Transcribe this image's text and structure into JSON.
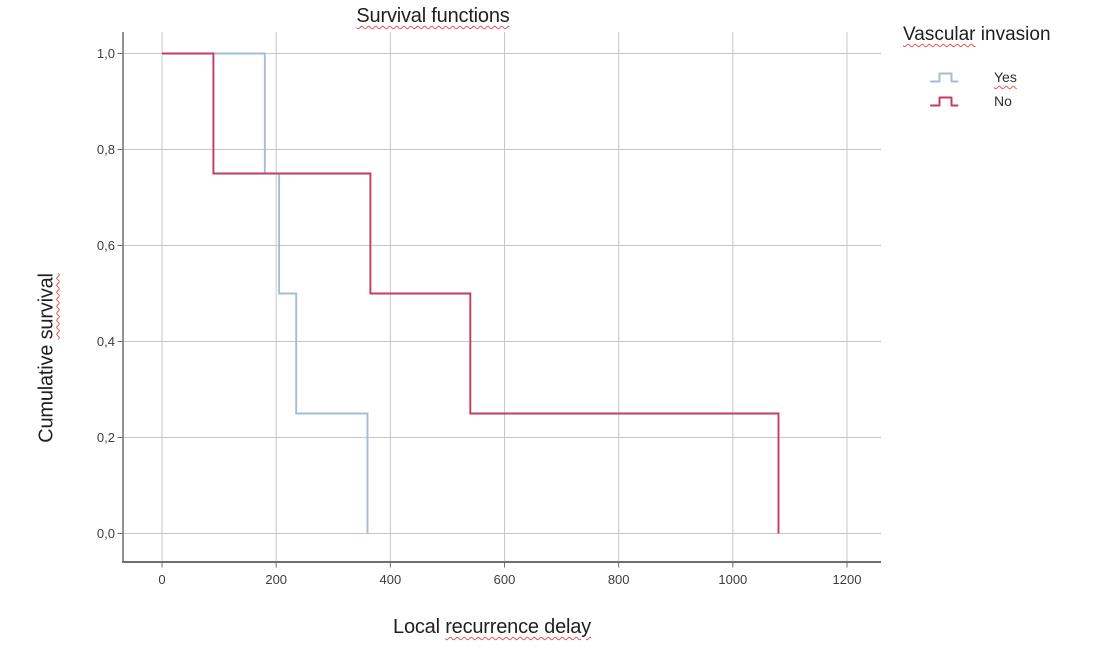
{
  "title_wavy": "Survival functions",
  "x_axis_label": {
    "plain": "Local",
    "wavy": "recurrence delay"
  },
  "y_axis_label": {
    "plain": "Cumulative",
    "wavy": "survival"
  },
  "legend": {
    "title_wavy_part": "Vascular",
    "title_plain_part": "invasion",
    "items": [
      {
        "label": "Yes",
        "color": "#a5bcd9",
        "misspelled_squiggle": true
      },
      {
        "label": "No",
        "color": "#c13e5f",
        "misspelled_squiggle": false
      }
    ]
  },
  "chart_data": {
    "type": "line",
    "subtype": "kaplan-meier-step",
    "title": "Survival functions",
    "xlabel": "Local recurrence delay",
    "ylabel": "Cumulative survival",
    "legend_title": "Vascular invasion",
    "legend_position": "top-right-outside",
    "grid": true,
    "x_domain": [
      -68.4,
      1259.6
    ],
    "y_domain": [
      -0.0594,
      1.0448
    ],
    "x_ticks": [
      {
        "v": 0,
        "label": "0"
      },
      {
        "v": 200,
        "label": "200"
      },
      {
        "v": 400,
        "label": "400"
      },
      {
        "v": 600,
        "label": "600"
      },
      {
        "v": 800,
        "label": "800"
      },
      {
        "v": 1000,
        "label": "1000"
      },
      {
        "v": 1200,
        "label": "1200"
      }
    ],
    "y_ticks": [
      {
        "v": 0.0,
        "label": "0,0"
      },
      {
        "v": 0.2,
        "label": "0,2"
      },
      {
        "v": 0.4,
        "label": "0,4"
      },
      {
        "v": 0.6,
        "label": "0,6"
      },
      {
        "v": 0.8,
        "label": "0,8"
      },
      {
        "v": 1.0,
        "label": "1,0"
      }
    ],
    "series": [
      {
        "name": "Yes",
        "color": "#a5bcd9",
        "points": [
          [
            0,
            1.0
          ],
          [
            180,
            1.0
          ],
          [
            180,
            0.75
          ],
          [
            205,
            0.75
          ],
          [
            205,
            0.5
          ],
          [
            235,
            0.5
          ],
          [
            235,
            0.25
          ],
          [
            360,
            0.25
          ],
          [
            360,
            0.0
          ]
        ]
      },
      {
        "name": "No",
        "color": "#c13e5f",
        "points": [
          [
            0,
            1.0
          ],
          [
            90,
            1.0
          ],
          [
            90,
            0.75
          ],
          [
            365,
            0.75
          ],
          [
            365,
            0.5
          ],
          [
            540,
            0.5
          ],
          [
            540,
            0.25
          ],
          [
            1080,
            0.25
          ],
          [
            1080,
            0.0
          ]
        ]
      }
    ],
    "colors": {
      "grid": "#c7c7c7",
      "axis": "#6f6f6f",
      "tick_label": "#3d3d3d",
      "squiggle": "#e25555"
    }
  }
}
